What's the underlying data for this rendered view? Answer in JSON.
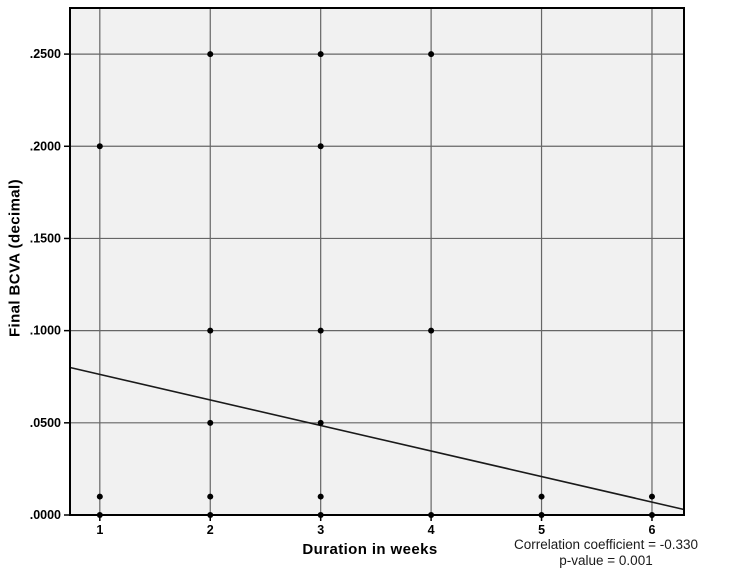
{
  "chart_data": {
    "type": "scatter",
    "title": "",
    "xlabel": "Duration in weeks",
    "ylabel": "Final BCVA (decimal)",
    "xlim": [
      0.73,
      6.29
    ],
    "ylim": [
      0,
      0.275
    ],
    "grid": true,
    "legend": "none",
    "x_ticks": {
      "values": [
        1,
        2,
        3,
        4,
        5,
        6
      ],
      "labels": [
        "1",
        "2",
        "3",
        "4",
        "5",
        "6"
      ]
    },
    "y_ticks": {
      "values": [
        0,
        0.05,
        0.1,
        0.15,
        0.2,
        0.25
      ],
      "labels": [
        ".0000",
        ".0500",
        ".1000",
        ".1500",
        ".2000",
        ".2500"
      ]
    },
    "points": [
      {
        "x": 1,
        "y": 0.2
      },
      {
        "x": 1,
        "y": 0.01
      },
      {
        "x": 1,
        "y": 0.0
      },
      {
        "x": 2,
        "y": 0.25
      },
      {
        "x": 2,
        "y": 0.1
      },
      {
        "x": 2,
        "y": 0.05
      },
      {
        "x": 2,
        "y": 0.01
      },
      {
        "x": 2,
        "y": 0.0
      },
      {
        "x": 3,
        "y": 0.25
      },
      {
        "x": 3,
        "y": 0.2
      },
      {
        "x": 3,
        "y": 0.1
      },
      {
        "x": 3,
        "y": 0.05
      },
      {
        "x": 3,
        "y": 0.01
      },
      {
        "x": 3,
        "y": 0.0
      },
      {
        "x": 4,
        "y": 0.25
      },
      {
        "x": 4,
        "y": 0.1
      },
      {
        "x": 4,
        "y": 0.0
      },
      {
        "x": 5,
        "y": 0.01
      },
      {
        "x": 5,
        "y": 0.0
      },
      {
        "x": 6,
        "y": 0.01
      },
      {
        "x": 6,
        "y": 0.0
      }
    ],
    "trend_line": {
      "x1": 0.73,
      "y1": 0.08,
      "x2": 6.29,
      "y2": 0.003
    },
    "annotation": {
      "line1": "Correlation coefficient = -0.330",
      "line2": "p-value = 0.001"
    },
    "colors": {
      "plot_bg": "#f1f1f1",
      "grid": "#666666",
      "frame": "#000000",
      "marker": "#000000",
      "trend": "#1a1a1a",
      "text": "#000000"
    }
  }
}
